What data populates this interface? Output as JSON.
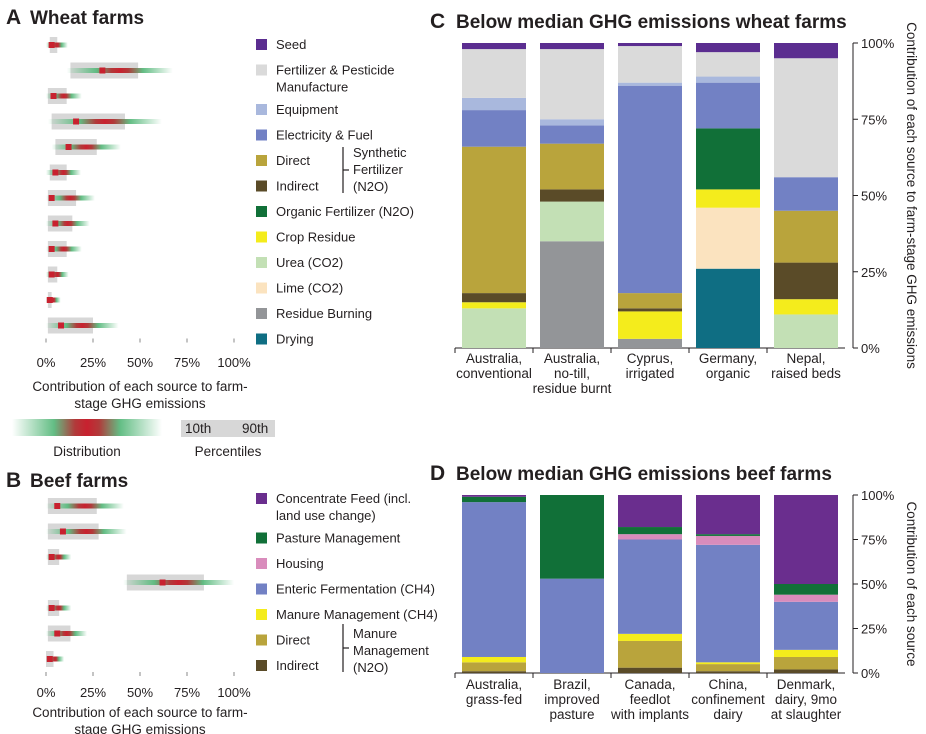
{
  "colors": {
    "seed": "#5b2d90",
    "fert_manufacture": "#dadada",
    "equipment": "#a9b8dd",
    "electricity_fuel": "#7281c4",
    "direct": "#b9a43c",
    "indirect": "#5a4b28",
    "organic_fert": "#117038",
    "crop_residue": "#f4ec1c",
    "urea": "#c3e0b5",
    "lime": "#fbe3bf",
    "residue_burning": "#939598",
    "drying": "#0f6e83",
    "concentrate_feed": "#6a2e8e",
    "pasture_mgmt": "#117038",
    "housing": "#d98cbc",
    "enteric": "#7281c4",
    "manure_ch4": "#f4ec1c",
    "percentile_box": "#d7d7d7",
    "dist_red": "#c8212f",
    "dist_green": "#5bba7e"
  },
  "chart_data": [
    {
      "panel": "A",
      "title": "Wheat farms",
      "type": "distribution",
      "xlabel": "Contribution of each source to farm-stage GHG emissions",
      "xlabel_lines": [
        "Contribution of each source to farm-",
        "stage GHG emissions"
      ],
      "xlim": [
        0,
        100
      ],
      "xticks": [
        "0%",
        "25%",
        "50%",
        "75%",
        "100%"
      ],
      "rows": [
        {
          "source": "Seed",
          "p10": 2,
          "p90": 6,
          "mode": 3
        },
        {
          "source": "Fertilizer & Pesticide Manufacture",
          "p10": 13,
          "p90": 49,
          "mode": 30
        },
        {
          "source": "Equipment",
          "p10": 1,
          "p90": 11,
          "mode": 4
        },
        {
          "source": "Electricity & Fuel",
          "p10": 3,
          "p90": 42,
          "mode": 16
        },
        {
          "source": "Direct",
          "p10": 5,
          "p90": 27,
          "mode": 12
        },
        {
          "source": "Indirect",
          "p10": 2,
          "p90": 11,
          "mode": 5
        },
        {
          "source": "Organic Fertilizer (N2O)",
          "p10": 1,
          "p90": 16,
          "mode": 3
        },
        {
          "source": "Crop Residue",
          "p10": 1,
          "p90": 14,
          "mode": 5
        },
        {
          "source": "Urea (CO2)",
          "p10": 1,
          "p90": 11,
          "mode": 3
        },
        {
          "source": "Lime (CO2)",
          "p10": 1,
          "p90": 6,
          "mode": 3
        },
        {
          "source": "Residue Burning",
          "p10": 1,
          "p90": 3,
          "mode": 2
        },
        {
          "source": "Drying",
          "p10": 1,
          "p90": 25,
          "mode": 8
        }
      ]
    },
    {
      "panel": "B",
      "title": "Beef farms",
      "type": "distribution",
      "xlabel_lines": [
        "Contribution of each source to farm-",
        "stage GHG emissions"
      ],
      "xlim": [
        0,
        100
      ],
      "xticks": [
        "0%",
        "25%",
        "50%",
        "75%",
        "100%"
      ],
      "rows": [
        {
          "source": "Concentrate Feed (incl. land use change)",
          "p10": 1,
          "p90": 27,
          "mode": 6
        },
        {
          "source": "Pasture Management",
          "p10": 1,
          "p90": 28,
          "mode": 9
        },
        {
          "source": "Housing",
          "p10": 1,
          "p90": 7,
          "mode": 3
        },
        {
          "source": "Enteric Fermentation (CH4)",
          "p10": 43,
          "p90": 84,
          "mode": 62
        },
        {
          "source": "Manure Management (CH4)",
          "p10": 1,
          "p90": 7,
          "mode": 3
        },
        {
          "source": "Direct",
          "p10": 1,
          "p90": 13,
          "mode": 6
        },
        {
          "source": "Indirect",
          "p10": 0,
          "p90": 4,
          "mode": 2
        }
      ]
    },
    {
      "panel": "C",
      "title": "Below median GHG emissions wheat farms",
      "type": "bar",
      "stacked": true,
      "ylabel": "Contribution of each source to farm-stage GHG emissions",
      "ylim": [
        0,
        100
      ],
      "yticks": [
        "0%",
        "25%",
        "50%",
        "75%",
        "100%"
      ],
      "categories": [
        [
          "Australia,",
          "conventional"
        ],
        [
          "Australia,",
          "no-till,",
          "residue burnt"
        ],
        [
          "Cyprus,",
          "irrigated"
        ],
        [
          "Germany,",
          "organic"
        ],
        [
          "Nepal,",
          "raised beds"
        ]
      ],
      "series": [
        {
          "key": "residue_burning",
          "values": [
            0,
            35,
            3,
            0,
            0
          ]
        },
        {
          "key": "drying",
          "values": [
            0,
            0,
            0,
            26,
            0
          ]
        },
        {
          "key": "urea",
          "values": [
            13,
            13,
            0,
            0,
            11
          ]
        },
        {
          "key": "lime",
          "values": [
            0,
            0,
            0,
            20,
            0
          ]
        },
        {
          "key": "crop_residue",
          "values": [
            2,
            0,
            9,
            6,
            5
          ]
        },
        {
          "key": "organic_fert",
          "values": [
            0,
            0,
            0,
            20,
            0
          ]
        },
        {
          "key": "indirect",
          "values": [
            3,
            4,
            1,
            0,
            12
          ]
        },
        {
          "key": "direct",
          "values": [
            48,
            15,
            5,
            0,
            17
          ]
        },
        {
          "key": "electricity_fuel",
          "values": [
            12,
            6,
            68,
            15,
            11
          ]
        },
        {
          "key": "equipment",
          "values": [
            4,
            2,
            1,
            2,
            0
          ]
        },
        {
          "key": "fert_manufacture",
          "values": [
            16,
            23,
            12,
            8,
            39
          ]
        },
        {
          "key": "seed",
          "values": [
            2,
            2,
            1,
            3,
            5
          ]
        }
      ]
    },
    {
      "panel": "D",
      "title": "Below median GHG emissions beef farms",
      "type": "bar",
      "stacked": true,
      "ylabel": "Contribution of each source",
      "ylim": [
        0,
        100
      ],
      "yticks": [
        "0%",
        "25%",
        "50%",
        "75%",
        "100%"
      ],
      "categories": [
        [
          "Australia,",
          "grass-fed"
        ],
        [
          "Brazil,",
          "improved",
          "pasture"
        ],
        [
          "Canada,",
          "feedlot",
          "with implants"
        ],
        [
          "China,",
          "confinement",
          "dairy"
        ],
        [
          "Denmark,",
          "dairy, 9mo",
          "at slaughter"
        ]
      ],
      "series": [
        {
          "key": "indirect",
          "values": [
            1,
            0,
            3,
            1,
            2
          ]
        },
        {
          "key": "direct",
          "values": [
            5,
            0,
            15,
            4,
            7
          ]
        },
        {
          "key": "manure_ch4",
          "values": [
            3,
            0,
            4,
            1,
            4
          ]
        },
        {
          "key": "enteric",
          "values": [
            87,
            53,
            53,
            66,
            27
          ]
        },
        {
          "key": "housing",
          "values": [
            0,
            0,
            3,
            5,
            4
          ]
        },
        {
          "key": "pasture_mgmt",
          "values": [
            3,
            47,
            4,
            1,
            6
          ]
        },
        {
          "key": "concentrate_feed",
          "values": [
            1,
            0,
            18,
            22,
            50
          ]
        }
      ]
    }
  ],
  "labels": {
    "A": "A",
    "B": "B",
    "C": "C",
    "D": "D",
    "distribution": "Distribution",
    "percentiles": "Percentiles",
    "p10_label": "10th",
    "p90_label": "90th",
    "synthetic_fert": [
      "Synthetic",
      "Fertilizer",
      "(N2O)"
    ],
    "manure_mgmt": [
      "Manure",
      "Management",
      "(N2O)"
    ]
  },
  "legend_wheat": [
    {
      "key": "seed",
      "lines": [
        "Seed"
      ]
    },
    {
      "key": "fert_manufacture",
      "lines": [
        "Fertilizer & Pesticide",
        "Manufacture"
      ]
    },
    {
      "key": "equipment",
      "lines": [
        "Equipment"
      ]
    },
    {
      "key": "electricity_fuel",
      "lines": [
        "Electricity & Fuel"
      ]
    },
    {
      "key": "direct",
      "lines": [
        "Direct"
      ]
    },
    {
      "key": "indirect",
      "lines": [
        "Indirect"
      ]
    },
    {
      "key": "organic_fert",
      "lines": [
        "Organic Fertilizer (N2O)"
      ]
    },
    {
      "key": "crop_residue",
      "lines": [
        "Crop Residue"
      ]
    },
    {
      "key": "urea",
      "lines": [
        "Urea (CO2)"
      ]
    },
    {
      "key": "lime",
      "lines": [
        "Lime (CO2)"
      ]
    },
    {
      "key": "residue_burning",
      "lines": [
        "Residue Burning"
      ]
    },
    {
      "key": "drying",
      "lines": [
        "Drying"
      ]
    }
  ],
  "legend_beef": [
    {
      "key": "concentrate_feed",
      "lines": [
        "Concentrate Feed (incl.",
        "land use change)"
      ]
    },
    {
      "key": "pasture_mgmt",
      "lines": [
        "Pasture Management"
      ]
    },
    {
      "key": "housing",
      "lines": [
        "Housing"
      ]
    },
    {
      "key": "enteric",
      "lines": [
        "Enteric Fermentation (CH4)"
      ]
    },
    {
      "key": "manure_ch4",
      "lines": [
        "Manure Management (CH4)"
      ]
    },
    {
      "key": "direct",
      "lines": [
        "Direct"
      ]
    },
    {
      "key": "indirect",
      "lines": [
        "Indirect"
      ]
    }
  ]
}
